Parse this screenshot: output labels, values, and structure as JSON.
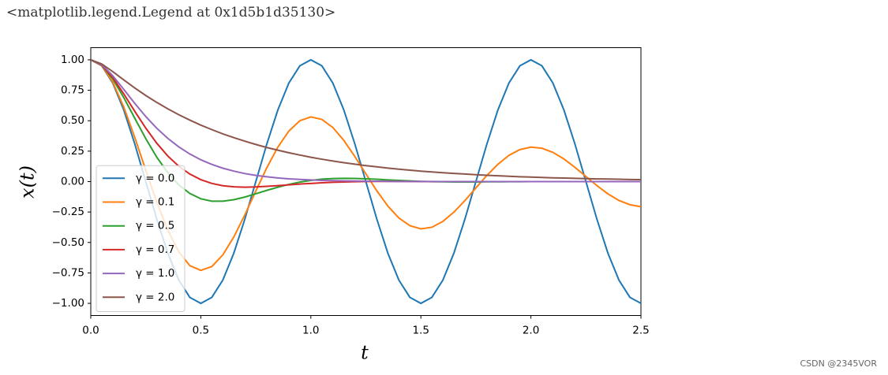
{
  "output_text": "<matplotlib.legend.Legend at 0x1d5b1d35130>",
  "watermark": "CSDN @2345VOR",
  "chart_data": {
    "type": "line",
    "xlabel": "t",
    "ylabel": "x(t)",
    "legend": "lower left",
    "xlim": [
      0,
      2.5
    ],
    "ylim": [
      -1.1,
      1.1
    ],
    "xticks": [
      {
        "value": 0,
        "label": "0.0"
      },
      0.5,
      {
        "value": 1,
        "label": "1.0"
      },
      1.5,
      {
        "value": 2,
        "label": "2.0"
      },
      2.5
    ],
    "yticks": [
      {
        "value": 1,
        "label": "1.00"
      },
      0.75,
      {
        "value": 0.5,
        "label": "0.50"
      },
      0.25,
      {
        "value": 0,
        "label": "0.00"
      },
      {
        "value": -0.25,
        "label": "−0.25"
      },
      {
        "value": -0.5,
        "label": "−0.50"
      },
      {
        "value": -0.75,
        "label": "−0.75"
      },
      {
        "value": -1,
        "label": "−1.00"
      }
    ],
    "x": [
      0,
      0.05,
      0.1,
      0.15,
      0.2,
      0.25,
      0.3,
      0.35,
      0.4,
      0.45,
      0.5,
      0.55,
      0.6,
      0.65,
      0.7,
      0.75,
      0.8,
      0.85,
      0.9,
      0.95,
      1,
      1.05,
      1.1,
      1.15,
      1.2,
      1.25,
      1.3,
      1.35,
      1.4,
      1.45,
      1.5,
      1.55,
      1.6,
      1.65,
      1.7,
      1.75,
      1.8,
      1.85,
      1.9,
      1.95,
      2,
      2.05,
      2.1,
      2.15,
      2.2,
      2.25,
      2.3,
      2.35,
      2.4,
      2.45,
      2.5
    ],
    "series": [
      {
        "name": "γ = 0.0",
        "color": "#1f77b4",
        "values": [
          1,
          0.951,
          0.809,
          0.588,
          0.309,
          0,
          -0.309,
          -0.588,
          -0.809,
          -0.951,
          -1,
          -0.951,
          -0.809,
          -0.588,
          -0.309,
          0,
          0.309,
          0.588,
          0.809,
          0.951,
          1,
          0.951,
          0.809,
          0.588,
          0.309,
          0,
          -0.309,
          -0.588,
          -0.809,
          -0.951,
          -1,
          -0.951,
          -0.809,
          -0.588,
          -0.309,
          0,
          0.309,
          0.588,
          0.809,
          0.951,
          1,
          0.951,
          0.809,
          0.588,
          0.309,
          0,
          -0.309,
          -0.588,
          -0.809,
          -0.951,
          -1
        ]
      },
      {
        "name": "γ = 0.1",
        "color": "#ff7f0e",
        "values": [
          1,
          0.952,
          0.817,
          0.612,
          0.362,
          0.093,
          -0.169,
          -0.399,
          -0.577,
          -0.69,
          -0.729,
          -0.698,
          -0.602,
          -0.455,
          -0.274,
          -0.077,
          0.114,
          0.283,
          0.415,
          0.5,
          0.531,
          0.511,
          0.444,
          0.338,
          0.206,
          0.064,
          -0.076,
          -0.201,
          -0.299,
          -0.362,
          -0.388,
          -0.375,
          -0.327,
          -0.251,
          -0.156,
          -0.052,
          0.051,
          0.142,
          0.215,
          0.263,
          0.283,
          0.274,
          0.24,
          0.186,
          0.117,
          0.042,
          -0.033,
          -0.101,
          -0.155,
          -0.19,
          -0.206
        ]
      },
      {
        "name": "γ = 0.5",
        "color": "#2ca02c",
        "values": [
          1,
          0.956,
          0.843,
          0.69,
          0.52,
          0.353,
          0.2,
          0.073,
          -0.027,
          -0.097,
          -0.141,
          -0.161,
          -0.161,
          -0.149,
          -0.127,
          -0.1,
          -0.072,
          -0.046,
          -0.023,
          -0.004,
          0.01,
          0.02,
          0.025,
          0.027,
          0.026,
          0.023,
          0.019,
          0.014,
          0.01,
          0.006,
          0.002,
          -0.001,
          -0.002,
          -0.003,
          -0.003,
          -0.003,
          -0.002,
          -0.002,
          -0.001,
          -0.001,
          0,
          0,
          0,
          0,
          0,
          0,
          0,
          0,
          0,
          0,
          0
        ]
      },
      {
        "name": "γ = 0.7",
        "color": "#d62728",
        "values": [
          1,
          0.957,
          0.854,
          0.72,
          0.577,
          0.439,
          0.315,
          0.21,
          0.126,
          0.062,
          0.016,
          -0.015,
          -0.034,
          -0.043,
          -0.046,
          -0.044,
          -0.039,
          -0.033,
          -0.027,
          -0.02,
          -0.015,
          -0.01,
          -0.006,
          -0.003,
          -0.001,
          0.001,
          0.002,
          0.002,
          0.002,
          0.001,
          0,
          0,
          0,
          0,
          0,
          0,
          0,
          0,
          0,
          0,
          0,
          0,
          0,
          0,
          0,
          0,
          0,
          0,
          0,
          0,
          0
        ]
      },
      {
        "name": "γ = 1.0",
        "color": "#9467bd",
        "values": [
          1,
          0.96,
          0.869,
          0.757,
          0.642,
          0.534,
          0.438,
          0.355,
          0.285,
          0.227,
          0.179,
          0.141,
          0.11,
          0.086,
          0.066,
          0.051,
          0.04,
          0.03,
          0.023,
          0.018,
          0.014,
          0.01,
          0.008,
          0.006,
          0.005,
          0.003,
          0.003,
          0.002,
          0.001,
          0.001,
          0.001,
          0.001,
          0,
          0,
          0,
          0,
          0,
          0,
          0,
          0,
          0,
          0,
          0,
          0,
          0,
          0,
          0,
          0,
          0,
          0,
          0
        ]
      },
      {
        "name": "γ = 2.0",
        "color": "#8c564b",
        "values": [
          1,
          0.966,
          0.903,
          0.835,
          0.769,
          0.707,
          0.65,
          0.598,
          0.549,
          0.505,
          0.464,
          0.427,
          0.392,
          0.361,
          0.332,
          0.305,
          0.28,
          0.258,
          0.237,
          0.218,
          0.2,
          0.184,
          0.169,
          0.155,
          0.143,
          0.131,
          0.121,
          0.111,
          0.102,
          0.094,
          0.086,
          0.079,
          0.073,
          0.067,
          0.062,
          0.057,
          0.052,
          0.048,
          0.044,
          0.04,
          0.037,
          0.034,
          0.031,
          0.029,
          0.027,
          0.024,
          0.022,
          0.021,
          0.019,
          0.017,
          0.016
        ]
      }
    ]
  }
}
